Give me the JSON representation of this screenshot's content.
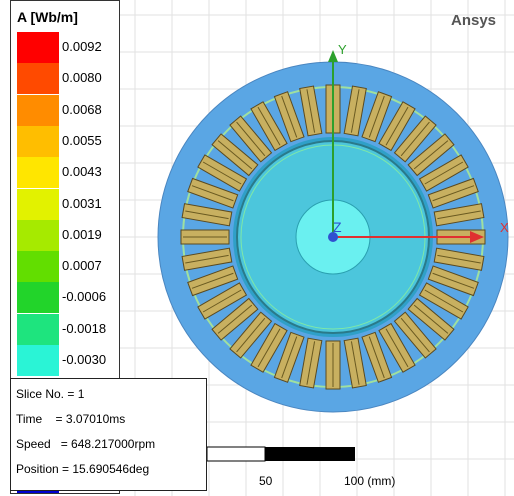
{
  "legend": {
    "title": "A [Wb/m]",
    "entries": [
      {
        "label": "0.0092",
        "color": "#ff0000"
      },
      {
        "label": "0.0080",
        "color": "#ff4a00"
      },
      {
        "label": "0.0068",
        "color": "#ff8c00"
      },
      {
        "label": "0.0055",
        "color": "#ffbe00"
      },
      {
        "label": "0.0043",
        "color": "#ffe600"
      },
      {
        "label": "0.0031",
        "color": "#e2f200"
      },
      {
        "label": "0.0019",
        "color": "#a6ea00"
      },
      {
        "label": "0.0007",
        "color": "#62de00"
      },
      {
        "label": "-0.0006",
        "color": "#22d42a"
      },
      {
        "label": "-0.0018",
        "color": "#1ee47e"
      },
      {
        "label": "-0.0030",
        "color": "#2af4d6"
      }
    ]
  },
  "brand": "Ansys",
  "info": {
    "rows": [
      "Slice No. = 1",
      "Time    = 3.07010ms",
      "Speed   = 648.217000rpm",
      "Position = 15.690546deg"
    ]
  },
  "scale": {
    "labels": [
      "50",
      "100 (mm)"
    ]
  },
  "axes": {
    "x": "X",
    "y": "Y",
    "z": "Z"
  }
}
